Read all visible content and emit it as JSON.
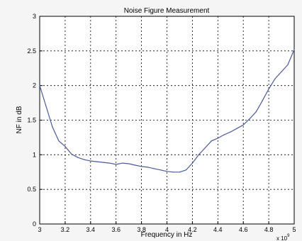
{
  "chart_data": {
    "type": "line",
    "title": "Noise Figure Measurement",
    "xlabel": "Frequency in Hz",
    "ylabel": "NF in dB",
    "x_exponent_label": "x 10",
    "x_exponent_power": "9",
    "xlim": [
      3,
      5
    ],
    "ylim": [
      0,
      3
    ],
    "x_ticks": [
      "3",
      "3.2",
      "3.4",
      "3.6",
      "3.8",
      "4",
      "4.2",
      "4.4",
      "4.6",
      "4.8",
      "5"
    ],
    "y_ticks": [
      "0",
      "0.5",
      "1",
      "1.5",
      "2",
      "2.5",
      "3"
    ],
    "grid": true,
    "line_color": "#4a5a9a",
    "series": [
      {
        "x": [
          3.0,
          3.05,
          3.1,
          3.15,
          3.2,
          3.25,
          3.3,
          3.35,
          3.4,
          3.45,
          3.5,
          3.55,
          3.6,
          3.65,
          3.7,
          3.75,
          3.8,
          3.85,
          3.9,
          3.95,
          4.0,
          4.05,
          4.1,
          4.15,
          4.2,
          4.25,
          4.3,
          4.35,
          4.4,
          4.45,
          4.5,
          4.55,
          4.6,
          4.65,
          4.7,
          4.75,
          4.8,
          4.85,
          4.9,
          4.95,
          5.0
        ],
        "y": [
          2.0,
          1.7,
          1.4,
          1.2,
          1.12,
          1.01,
          0.96,
          0.93,
          0.91,
          0.9,
          0.89,
          0.88,
          0.86,
          0.88,
          0.87,
          0.85,
          0.83,
          0.82,
          0.8,
          0.78,
          0.76,
          0.75,
          0.75,
          0.78,
          0.88,
          1.0,
          1.1,
          1.2,
          1.24,
          1.29,
          1.33,
          1.38,
          1.43,
          1.52,
          1.62,
          1.78,
          1.95,
          2.1,
          2.2,
          2.3,
          2.52
        ]
      }
    ]
  }
}
